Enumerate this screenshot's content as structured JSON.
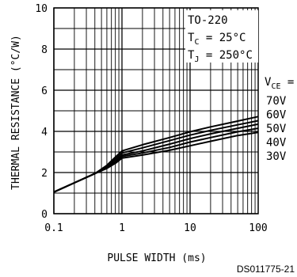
{
  "chart_data": {
    "type": "line",
    "title": "",
    "xlabel": "PULSE WIDTH (ms)",
    "ylabel": "THERMAL RESISTANCE (°C/W)",
    "xscale": "log",
    "xlim": [
      0.1,
      100
    ],
    "ylim": [
      0,
      10
    ],
    "grid": true,
    "x_tick_labels": [
      "0.1",
      "1",
      "10",
      "100"
    ],
    "y_tick_labels": [
      "0",
      "2",
      "4",
      "6",
      "8",
      "10"
    ],
    "conditions": [
      "TO-220",
      "T_C = 25°C",
      "T_J = 250°C"
    ],
    "legend_title": "V_CE =",
    "series": [
      {
        "name": "70V",
        "x": [
          0.1,
          0.2,
          0.4,
          0.6,
          0.8,
          1,
          2,
          5,
          10,
          20,
          50,
          100
        ],
        "values": [
          1.05,
          1.5,
          1.95,
          2.35,
          2.75,
          3.05,
          3.35,
          3.7,
          3.98,
          4.22,
          4.5,
          4.72
        ]
      },
      {
        "name": "60V",
        "x": [
          0.1,
          0.2,
          0.4,
          0.6,
          0.8,
          1,
          2,
          5,
          10,
          20,
          50,
          100
        ],
        "values": [
          1.05,
          1.5,
          1.95,
          2.3,
          2.65,
          2.95,
          3.2,
          3.55,
          3.82,
          4.05,
          4.32,
          4.52
        ]
      },
      {
        "name": "50V",
        "x": [
          0.1,
          0.2,
          0.4,
          0.6,
          0.8,
          1,
          2,
          5,
          10,
          20,
          50,
          100
        ],
        "values": [
          1.05,
          1.5,
          1.95,
          2.28,
          2.55,
          2.85,
          3.05,
          3.38,
          3.65,
          3.88,
          4.15,
          4.35
        ]
      },
      {
        "name": "40V",
        "x": [
          0.1,
          0.2,
          0.4,
          0.6,
          0.8,
          1,
          2,
          5,
          10,
          20,
          50,
          100
        ],
        "values": [
          1.05,
          1.5,
          1.95,
          2.25,
          2.5,
          2.78,
          2.95,
          3.22,
          3.48,
          3.7,
          3.98,
          4.15
        ]
      },
      {
        "name": "30V",
        "x": [
          0.1,
          0.2,
          0.4,
          0.6,
          0.8,
          1,
          2,
          5,
          10,
          20,
          50,
          100
        ],
        "values": [
          1.05,
          1.5,
          1.95,
          2.2,
          2.45,
          2.7,
          2.85,
          3.08,
          3.3,
          3.52,
          3.8,
          3.95
        ]
      }
    ]
  },
  "footer": {
    "code": "DS011775-21"
  }
}
